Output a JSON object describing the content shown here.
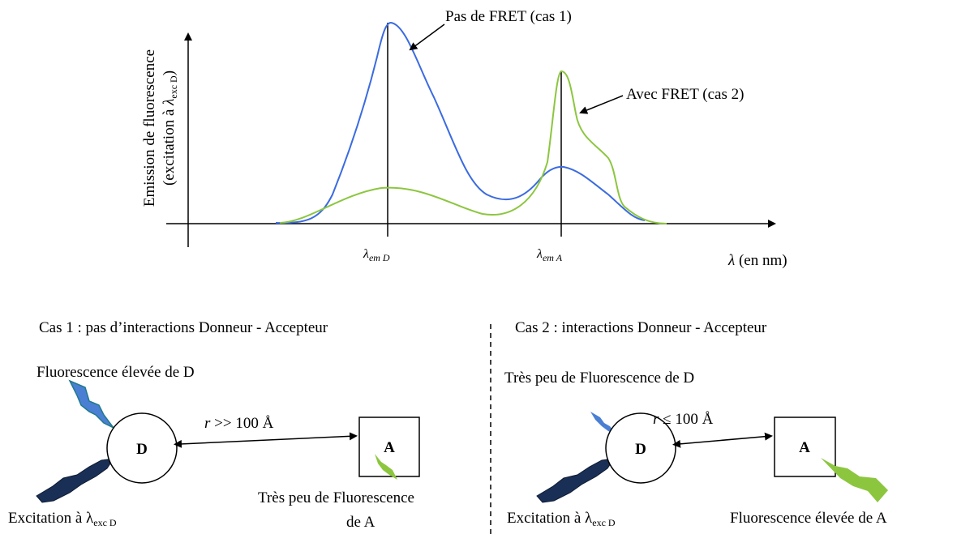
{
  "graph": {
    "y_label_line1": "Emission de fluorescence",
    "y_label_line2": {
      "start": "(excitation à ",
      "symbol": "λ",
      "sub": "exc D",
      "end": ")"
    },
    "curve_no_fret": "Pas de FRET (cas 1)",
    "curve_fret": "Avec FRET (cas 2)",
    "x_mark_d": {
      "symbol": "λ",
      "sub": "em D"
    },
    "x_mark_a": {
      "symbol": "λ",
      "sub": "em A"
    },
    "x_label": {
      "symbol": "λ",
      "rest": " (en nm)"
    }
  },
  "case1": {
    "title": "Cas 1 : pas d’interactions Donneur - Accepteur",
    "donor_emission": "Fluorescence élevée de D",
    "distance": {
      "symbol": "r",
      "rest": " >> 100 Å"
    },
    "donor": "D",
    "acceptor": "A",
    "excitation": {
      "start": "Excitation à ",
      "symbol": "λ",
      "sub": "exc D"
    },
    "acceptor_emission_line1": "Très peu de Fluorescence",
    "acceptor_emission_line2": "de A"
  },
  "case2": {
    "title": "Cas 2 : interactions Donneur - Accepteur",
    "donor_emission": "Très peu de Fluorescence de D",
    "distance": {
      "symbol": "r",
      "rest": " ≤ 100 Å"
    },
    "donor": "D",
    "acceptor": "A",
    "excitation": {
      "start": "Excitation à ",
      "symbol": "λ",
      "sub": "exc D"
    },
    "acceptor_emission": "Fluorescence élevée de A"
  }
}
